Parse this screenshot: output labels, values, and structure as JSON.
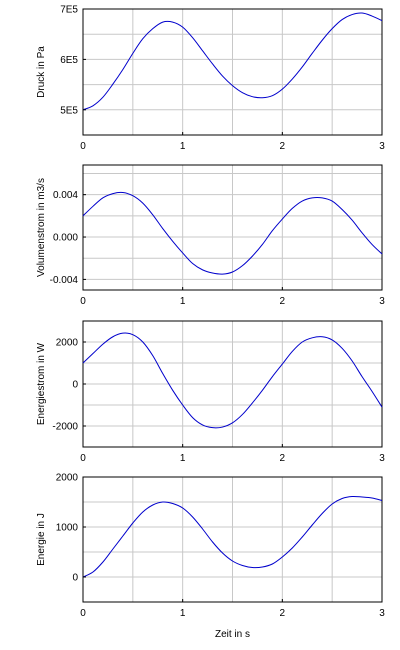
{
  "chart_data": [
    {
      "type": "line",
      "ylabel": "Druck in Pa",
      "xlim": [
        0,
        3
      ],
      "ylim": [
        450000,
        700000
      ],
      "x_ticks": [
        "0",
        "1",
        "2",
        "3"
      ],
      "y_ticks": [
        {
          "value": 500000,
          "label": "5E5"
        },
        {
          "value": 600000,
          "label": "6E5"
        },
        {
          "value": 700000,
          "label": "7E5"
        }
      ],
      "grid": true,
      "line_color": "#0000cc",
      "series": [
        {
          "x": [
            0,
            0.1,
            0.2,
            0.3,
            0.4,
            0.5,
            0.6,
            0.7,
            0.8,
            0.9,
            1.0,
            1.1,
            1.2,
            1.3,
            1.4,
            1.5,
            1.6,
            1.7,
            1.8,
            1.9,
            2.0,
            2.1,
            2.2,
            2.3,
            2.4,
            2.5,
            2.6,
            2.7,
            2.8,
            2.9,
            3.0
          ],
          "y": [
            500000,
            508000,
            525000,
            551000,
            580000,
            612000,
            641000,
            661000,
            674000,
            674000,
            664000,
            643000,
            617000,
            591000,
            567000,
            548000,
            534000,
            526000,
            524000,
            528000,
            541000,
            561000,
            585000,
            612000,
            638000,
            661000,
            679000,
            689000,
            692000,
            686000,
            677000
          ]
        }
      ]
    },
    {
      "type": "line",
      "ylabel": "Volumenstrom in m3/s",
      "xlim": [
        0,
        3
      ],
      "ylim": [
        -0.005,
        0.0068
      ],
      "x_ticks": [
        "0",
        "1",
        "2",
        "3"
      ],
      "y_ticks": [
        {
          "value": -0.004,
          "label": "-0.004"
        },
        {
          "value": 0,
          "label": "0.000"
        },
        {
          "value": 0.004,
          "label": "0.004"
        }
      ],
      "grid": true,
      "line_color": "#0000cc",
      "series": [
        {
          "x": [
            0,
            0.1,
            0.2,
            0.3,
            0.4,
            0.5,
            0.6,
            0.7,
            0.8,
            0.9,
            1.0,
            1.1,
            1.2,
            1.3,
            1.4,
            1.5,
            1.6,
            1.7,
            1.8,
            1.9,
            2.0,
            2.1,
            2.2,
            2.3,
            2.4,
            2.5,
            2.6,
            2.7,
            2.8,
            2.9,
            3.0
          ],
          "y": [
            0.002,
            0.0029,
            0.0037,
            0.0041,
            0.0042,
            0.0039,
            0.0032,
            0.0021,
            0.0008,
            -0.0004,
            -0.0015,
            -0.0025,
            -0.0031,
            -0.0034,
            -0.0035,
            -0.0033,
            -0.0027,
            -0.0018,
            -0.0007,
            0.0006,
            0.0017,
            0.0027,
            0.0034,
            0.0037,
            0.0037,
            0.0034,
            0.0026,
            0.0016,
            0.0004,
            -0.0007,
            -0.0016
          ]
        }
      ]
    },
    {
      "type": "line",
      "ylabel": "Energiestrom in W",
      "xlim": [
        0,
        3
      ],
      "ylim": [
        -3000,
        3000
      ],
      "x_ticks": [
        "0",
        "1",
        "2",
        "3"
      ],
      "y_ticks": [
        {
          "value": -2000,
          "label": "-2000"
        },
        {
          "value": 0,
          "label": "0"
        },
        {
          "value": 2000,
          "label": "2000"
        }
      ],
      "grid": true,
      "line_color": "#0000cc",
      "series": [
        {
          "x": [
            0,
            0.1,
            0.2,
            0.3,
            0.4,
            0.5,
            0.6,
            0.7,
            0.8,
            0.9,
            1.0,
            1.1,
            1.2,
            1.3,
            1.4,
            1.5,
            1.6,
            1.7,
            1.8,
            1.9,
            2.0,
            2.1,
            2.2,
            2.3,
            2.4,
            2.5,
            2.6,
            2.7,
            2.8,
            2.9,
            3.0
          ],
          "y": [
            1000,
            1450,
            1900,
            2250,
            2420,
            2350,
            2000,
            1350,
            500,
            -300,
            -1000,
            -1600,
            -1950,
            -2080,
            -2050,
            -1850,
            -1450,
            -900,
            -300,
            350,
            950,
            1550,
            2000,
            2200,
            2250,
            2100,
            1700,
            1100,
            350,
            -350,
            -1100
          ]
        }
      ]
    },
    {
      "type": "line",
      "ylabel": "Energie in J",
      "xlabel": "Zeit in s",
      "xlim": [
        0,
        3
      ],
      "ylim": [
        -500,
        2000
      ],
      "x_ticks": [
        "0",
        "1",
        "2",
        "3"
      ],
      "y_ticks": [
        {
          "value": 0,
          "label": "0"
        },
        {
          "value": 1000,
          "label": "1000"
        },
        {
          "value": 2000,
          "label": "2000"
        }
      ],
      "grid": true,
      "line_color": "#0000cc",
      "series": [
        {
          "x": [
            0,
            0.1,
            0.2,
            0.3,
            0.4,
            0.5,
            0.6,
            0.7,
            0.8,
            0.9,
            1.0,
            1.1,
            1.2,
            1.3,
            1.4,
            1.5,
            1.6,
            1.7,
            1.8,
            1.9,
            2.0,
            2.1,
            2.2,
            2.3,
            2.4,
            2.5,
            2.6,
            2.7,
            2.8,
            2.9,
            3.0
          ],
          "y": [
            0,
            100,
            300,
            560,
            820,
            1080,
            1300,
            1440,
            1500,
            1470,
            1380,
            1200,
            960,
            700,
            480,
            320,
            230,
            190,
            200,
            260,
            400,
            580,
            800,
            1040,
            1270,
            1460,
            1570,
            1610,
            1600,
            1580,
            1530
          ]
        }
      ]
    }
  ]
}
